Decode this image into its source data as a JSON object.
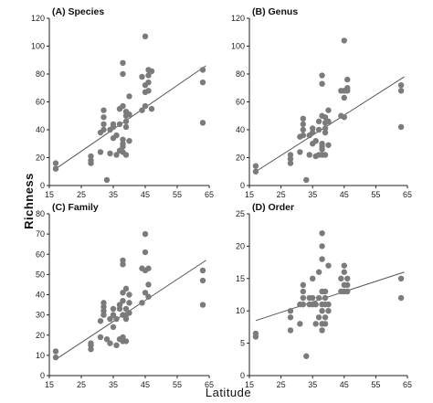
{
  "figure": {
    "ylabel": "Richness",
    "xlabel": "Latitude"
  },
  "chart_data": [
    {
      "type": "scatter",
      "title": "(A) Species",
      "xlim": [
        15,
        65
      ],
      "ylim": [
        0,
        120
      ],
      "xticks": [
        15,
        25,
        35,
        45,
        55,
        65
      ],
      "yticks": [
        0,
        20,
        40,
        60,
        80,
        100,
        120
      ],
      "fit_line": {
        "x": [
          17,
          64
        ],
        "y": [
          12,
          86
        ]
      },
      "points": [
        [
          17,
          12
        ],
        [
          17,
          16
        ],
        [
          28,
          16
        ],
        [
          28,
          18
        ],
        [
          28,
          21
        ],
        [
          31,
          24
        ],
        [
          31,
          38
        ],
        [
          32,
          40
        ],
        [
          32,
          44
        ],
        [
          32,
          49
        ],
        [
          32,
          54
        ],
        [
          33,
          4
        ],
        [
          34,
          23
        ],
        [
          34,
          40
        ],
        [
          35,
          34
        ],
        [
          35,
          42
        ],
        [
          35,
          44
        ],
        [
          36,
          22
        ],
        [
          36,
          36
        ],
        [
          37,
          25
        ],
        [
          37,
          44
        ],
        [
          37,
          55
        ],
        [
          38,
          24
        ],
        [
          38,
          28
        ],
        [
          38,
          30
        ],
        [
          38,
          33
        ],
        [
          38,
          57
        ],
        [
          38,
          80
        ],
        [
          38,
          88
        ],
        [
          39,
          22
        ],
        [
          39,
          42
        ],
        [
          39,
          46
        ],
        [
          39,
          50
        ],
        [
          39,
          53
        ],
        [
          40,
          32
        ],
        [
          40,
          51
        ],
        [
          40,
          64
        ],
        [
          44,
          54
        ],
        [
          44,
          78
        ],
        [
          45,
          57
        ],
        [
          45,
          67
        ],
        [
          45,
          72
        ],
        [
          45,
          107
        ],
        [
          46,
          68
        ],
        [
          46,
          74
        ],
        [
          46,
          79
        ],
        [
          46,
          83
        ],
        [
          47,
          82
        ],
        [
          47,
          55
        ],
        [
          63,
          45
        ],
        [
          63,
          74
        ],
        [
          63,
          83
        ]
      ]
    },
    {
      "type": "scatter",
      "title": "(B) Genus",
      "xlim": [
        15,
        65
      ],
      "ylim": [
        0,
        120
      ],
      "xticks": [
        15,
        25,
        35,
        45,
        55,
        65
      ],
      "yticks": [
        0,
        20,
        40,
        60,
        80,
        100,
        120
      ],
      "fit_line": {
        "x": [
          17,
          64
        ],
        "y": [
          10,
          78
        ]
      },
      "points": [
        [
          17,
          10
        ],
        [
          17,
          14
        ],
        [
          28,
          16
        ],
        [
          28,
          19
        ],
        [
          28,
          22
        ],
        [
          31,
          24
        ],
        [
          31,
          35
        ],
        [
          32,
          36
        ],
        [
          32,
          40
        ],
        [
          32,
          44
        ],
        [
          32,
          48
        ],
        [
          33,
          4
        ],
        [
          34,
          22
        ],
        [
          34,
          36
        ],
        [
          35,
          30
        ],
        [
          35,
          38
        ],
        [
          35,
          41
        ],
        [
          36,
          21
        ],
        [
          36,
          32
        ],
        [
          37,
          22
        ],
        [
          37,
          40
        ],
        [
          37,
          46
        ],
        [
          38,
          22
        ],
        [
          38,
          26
        ],
        [
          38,
          28
        ],
        [
          38,
          30
        ],
        [
          38,
          50
        ],
        [
          38,
          73
        ],
        [
          38,
          79
        ],
        [
          39,
          22
        ],
        [
          39,
          38
        ],
        [
          39,
          41
        ],
        [
          39,
          45
        ],
        [
          39,
          49
        ],
        [
          40,
          29
        ],
        [
          40,
          46
        ],
        [
          40,
          54
        ],
        [
          44,
          50
        ],
        [
          44,
          68
        ],
        [
          45,
          49
        ],
        [
          45,
          63
        ],
        [
          45,
          68
        ],
        [
          45,
          104
        ],
        [
          46,
          68
        ],
        [
          46,
          70
        ],
        [
          46,
          76
        ],
        [
          63,
          42
        ],
        [
          63,
          68
        ],
        [
          63,
          72
        ]
      ]
    },
    {
      "type": "scatter",
      "title": "(C) Family",
      "xlim": [
        15,
        65
      ],
      "ylim": [
        0,
        80
      ],
      "xticks": [
        15,
        25,
        35,
        45,
        55,
        65
      ],
      "yticks": [
        0,
        10,
        20,
        30,
        40,
        50,
        60,
        70,
        80
      ],
      "fit_line": {
        "x": [
          17,
          64
        ],
        "y": [
          8,
          57
        ]
      },
      "points": [
        [
          17,
          9
        ],
        [
          17,
          12
        ],
        [
          28,
          13
        ],
        [
          28,
          15
        ],
        [
          28,
          16
        ],
        [
          31,
          19
        ],
        [
          31,
          27
        ],
        [
          32,
          30
        ],
        [
          32,
          32
        ],
        [
          32,
          34
        ],
        [
          32,
          36
        ],
        [
          33,
          18
        ],
        [
          34,
          16
        ],
        [
          34,
          28
        ],
        [
          35,
          24
        ],
        [
          35,
          30
        ],
        [
          35,
          33
        ],
        [
          36,
          15
        ],
        [
          36,
          28
        ],
        [
          37,
          18
        ],
        [
          37,
          33
        ],
        [
          37,
          35
        ],
        [
          38,
          17
        ],
        [
          38,
          19
        ],
        [
          38,
          30
        ],
        [
          38,
          37
        ],
        [
          38,
          41
        ],
        [
          38,
          55
        ],
        [
          38,
          57
        ],
        [
          39,
          17
        ],
        [
          39,
          28
        ],
        [
          39,
          30
        ],
        [
          39,
          33
        ],
        [
          39,
          43
        ],
        [
          40,
          31
        ],
        [
          40,
          36
        ],
        [
          40,
          40
        ],
        [
          44,
          36
        ],
        [
          44,
          53
        ],
        [
          45,
          41
        ],
        [
          45,
          52
        ],
        [
          45,
          61
        ],
        [
          45,
          70
        ],
        [
          46,
          39
        ],
        [
          46,
          45
        ],
        [
          46,
          53
        ],
        [
          63,
          35
        ],
        [
          63,
          47
        ],
        [
          63,
          52
        ]
      ]
    },
    {
      "type": "scatter",
      "title": "(D) Order",
      "xlim": [
        15,
        65
      ],
      "ylim": [
        0,
        25
      ],
      "xticks": [
        15,
        25,
        35,
        45,
        55,
        65
      ],
      "yticks": [
        0,
        5,
        10,
        15,
        20,
        25
      ],
      "fit_line": {
        "x": [
          17,
          64
        ],
        "y": [
          8.5,
          16
        ]
      },
      "points": [
        [
          17,
          6
        ],
        [
          17,
          6.5
        ],
        [
          28,
          7
        ],
        [
          28,
          9
        ],
        [
          28,
          10
        ],
        [
          31,
          8
        ],
        [
          31,
          11
        ],
        [
          32,
          11
        ],
        [
          32,
          12
        ],
        [
          32,
          13
        ],
        [
          32,
          14
        ],
        [
          33,
          3
        ],
        [
          34,
          11
        ],
        [
          34,
          12
        ],
        [
          35,
          11
        ],
        [
          35,
          12
        ],
        [
          35,
          15
        ],
        [
          36,
          8
        ],
        [
          36,
          11
        ],
        [
          37,
          9
        ],
        [
          37,
          12
        ],
        [
          37,
          16
        ],
        [
          38,
          7
        ],
        [
          38,
          8
        ],
        [
          38,
          10
        ],
        [
          38,
          11
        ],
        [
          38,
          13
        ],
        [
          38,
          18
        ],
        [
          38,
          20
        ],
        [
          38,
          22
        ],
        [
          39,
          8
        ],
        [
          39,
          9
        ],
        [
          39,
          11
        ],
        [
          39,
          12
        ],
        [
          39,
          13
        ],
        [
          40,
          10
        ],
        [
          40,
          11
        ],
        [
          40,
          17
        ],
        [
          44,
          13
        ],
        [
          44,
          15
        ],
        [
          45,
          13
        ],
        [
          45,
          14
        ],
        [
          45,
          16
        ],
        [
          45,
          17
        ],
        [
          46,
          13
        ],
        [
          46,
          14
        ],
        [
          46,
          15
        ],
        [
          63,
          12
        ],
        [
          63,
          15
        ]
      ]
    }
  ]
}
